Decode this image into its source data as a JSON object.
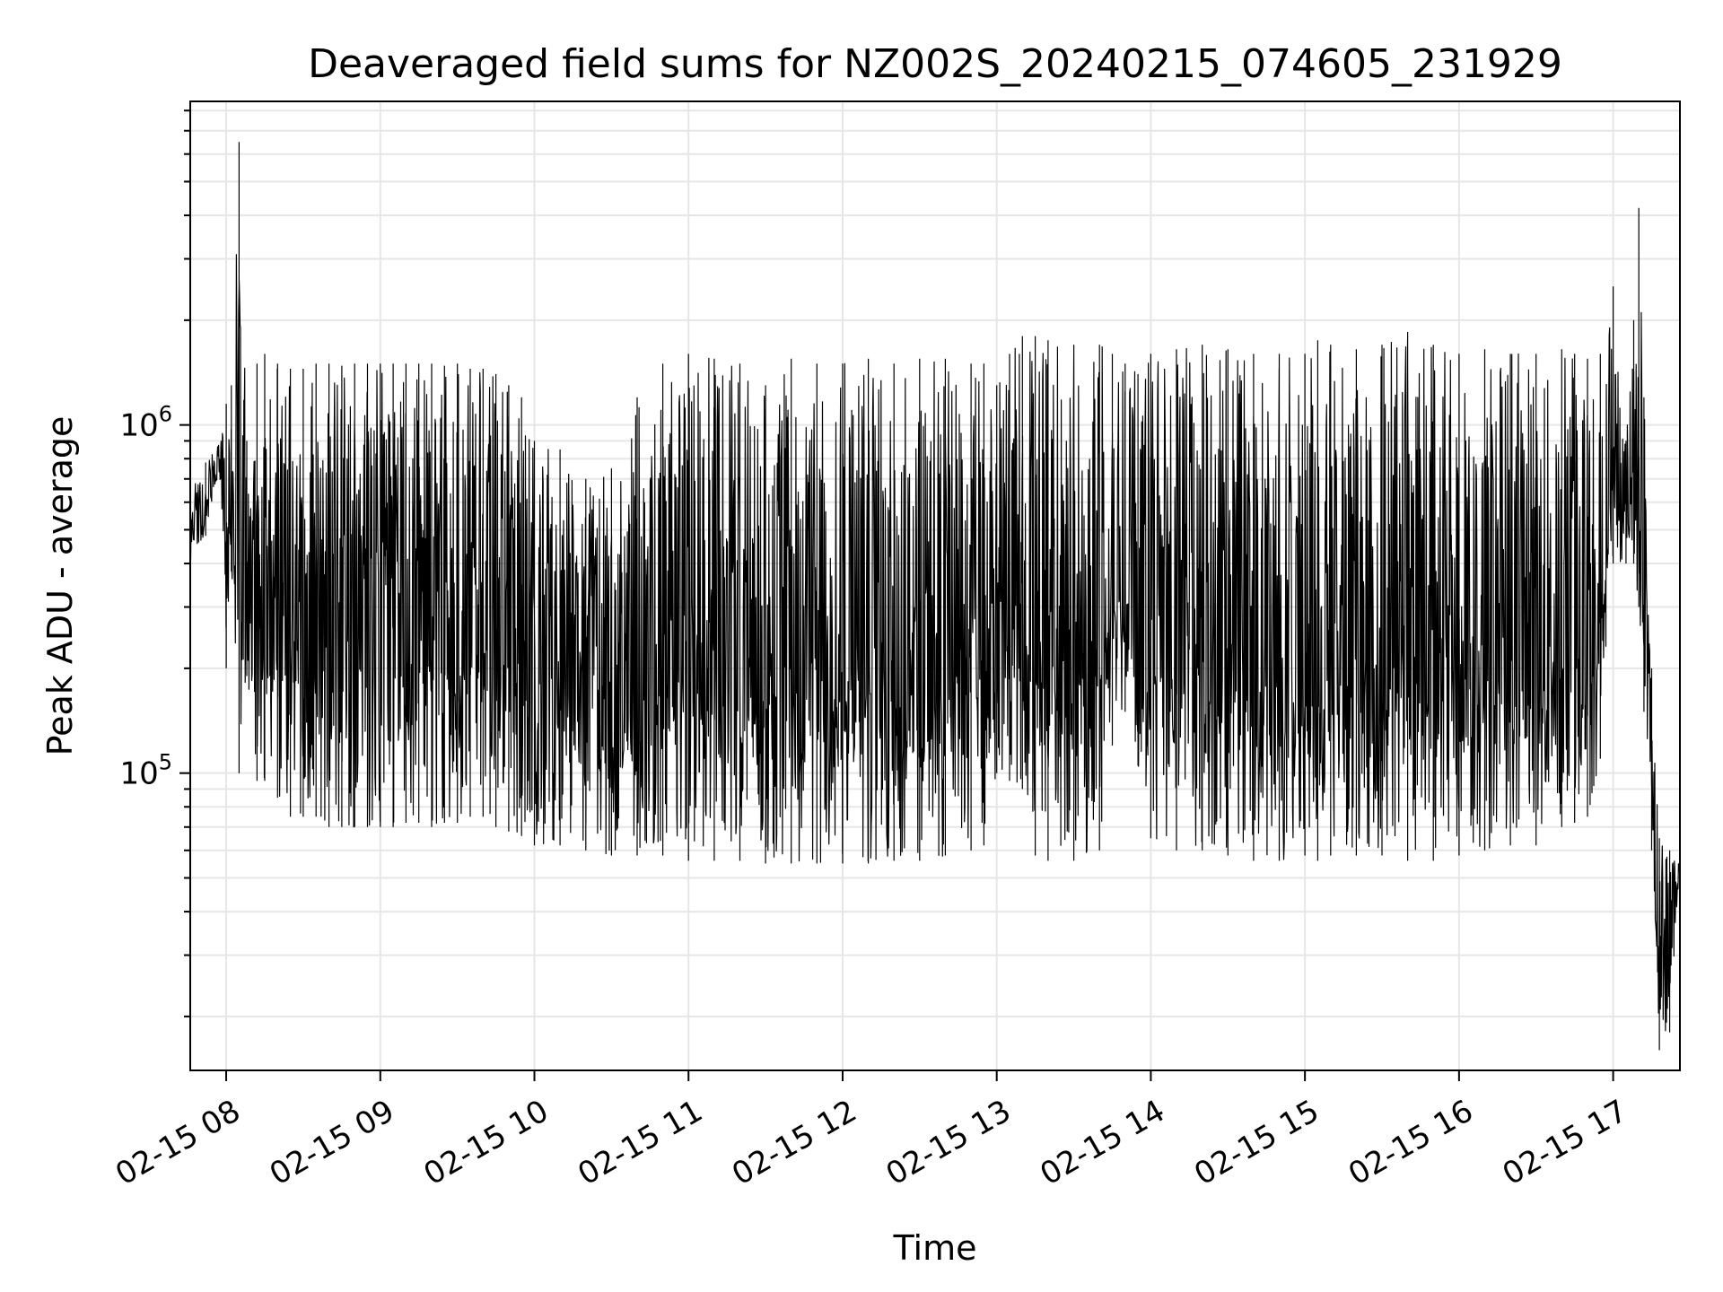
{
  "chart_data": {
    "type": "line",
    "title": "Deaveraged field sums for NZ002S_20240215_074605_231929",
    "xlabel": "Time",
    "ylabel": "Peak ADU - average",
    "y_scale": "log",
    "ylim": [
      14000,
      8500000
    ],
    "xlim": [
      "2024-02-15 07:46",
      "2024-02-15 17:26"
    ],
    "grid": true,
    "line_color": "#000000",
    "grid_color": "#e6e6e6",
    "x_ticks": [
      {
        "at": "2024-02-15 08:00",
        "label": "02-15 08"
      },
      {
        "at": "2024-02-15 09:00",
        "label": "02-15 09"
      },
      {
        "at": "2024-02-15 10:00",
        "label": "02-15 10"
      },
      {
        "at": "2024-02-15 11:00",
        "label": "02-15 11"
      },
      {
        "at": "2024-02-15 12:00",
        "label": "02-15 12"
      },
      {
        "at": "2024-02-15 13:00",
        "label": "02-15 13"
      },
      {
        "at": "2024-02-15 14:00",
        "label": "02-15 14"
      },
      {
        "at": "2024-02-15 15:00",
        "label": "02-15 15"
      },
      {
        "at": "2024-02-15 16:00",
        "label": "02-15 16"
      },
      {
        "at": "2024-02-15 17:00",
        "label": "02-15 17"
      }
    ],
    "y_ticks": [
      {
        "value": 100000,
        "base": "10",
        "exp": "5"
      },
      {
        "value": 1000000,
        "base": "10",
        "exp": "6"
      }
    ],
    "series": [
      {
        "x": [
          "2024-02-15 07:46",
          "2024-02-15 07:52",
          "2024-02-15 07:58",
          "2024-02-15 08:00",
          "2024-02-15 08:02",
          "2024-02-15 08:05",
          "2024-02-15 08:08",
          "2024-02-15 08:12",
          "2024-02-15 08:15",
          "2024-02-15 08:20",
          "2024-02-15 08:25",
          "2024-02-15 08:30",
          "2024-02-15 08:35",
          "2024-02-15 08:40",
          "2024-02-15 08:45",
          "2024-02-15 08:50",
          "2024-02-15 08:55",
          "2024-02-15 09:00",
          "2024-02-15 09:05",
          "2024-02-15 09:10",
          "2024-02-15 09:15",
          "2024-02-15 09:20",
          "2024-02-15 09:25",
          "2024-02-15 09:30",
          "2024-02-15 09:35",
          "2024-02-15 09:40",
          "2024-02-15 09:45",
          "2024-02-15 09:50",
          "2024-02-15 09:55",
          "2024-02-15 10:00",
          "2024-02-15 10:10",
          "2024-02-15 10:20",
          "2024-02-15 10:30",
          "2024-02-15 10:40",
          "2024-02-15 10:50",
          "2024-02-15 11:00",
          "2024-02-15 11:10",
          "2024-02-15 11:20",
          "2024-02-15 11:30",
          "2024-02-15 11:40",
          "2024-02-15 11:50",
          "2024-02-15 12:00",
          "2024-02-15 12:10",
          "2024-02-15 12:20",
          "2024-02-15 12:30",
          "2024-02-15 12:40",
          "2024-02-15 12:50",
          "2024-02-15 12:55",
          "2024-02-15 13:00",
          "2024-02-15 13:05",
          "2024-02-15 13:10",
          "2024-02-15 13:15",
          "2024-02-15 13:20",
          "2024-02-15 13:30",
          "2024-02-15 13:40",
          "2024-02-15 13:45",
          "2024-02-15 13:50",
          "2024-02-15 13:55",
          "2024-02-15 14:00",
          "2024-02-15 14:10",
          "2024-02-15 14:20",
          "2024-02-15 14:30",
          "2024-02-15 14:40",
          "2024-02-15 14:50",
          "2024-02-15 15:00",
          "2024-02-15 15:05",
          "2024-02-15 15:10",
          "2024-02-15 15:20",
          "2024-02-15 15:30",
          "2024-02-15 15:40",
          "2024-02-15 15:50",
          "2024-02-15 16:00",
          "2024-02-15 16:10",
          "2024-02-15 16:20",
          "2024-02-15 16:30",
          "2024-02-15 16:40",
          "2024-02-15 16:45",
          "2024-02-15 16:50",
          "2024-02-15 16:55",
          "2024-02-15 17:00",
          "2024-02-15 17:05",
          "2024-02-15 17:08",
          "2024-02-15 17:10",
          "2024-02-15 17:12",
          "2024-02-15 17:15",
          "2024-02-15 17:18",
          "2024-02-15 17:22",
          "2024-02-15 17:26"
        ],
        "min": [
          390000,
          480000,
          700000,
          200000,
          380000,
          100000,
          190000,
          95000,
          95000,
          85000,
          75000,
          75000,
          75000,
          70000,
          70000,
          70000,
          70000,
          70000,
          70000,
          72000,
          72000,
          70000,
          72000,
          72000,
          75000,
          75000,
          70000,
          68000,
          66000,
          62000,
          62000,
          60000,
          58000,
          58000,
          58000,
          56000,
          56000,
          56000,
          55000,
          55000,
          55000,
          55000,
          55000,
          56000,
          56000,
          58000,
          60000,
          62000,
          100000,
          95000,
          90000,
          58000,
          56000,
          56000,
          60000,
          120000,
          150000,
          105000,
          65000,
          60000,
          60000,
          58000,
          56000,
          56000,
          58000,
          56000,
          58000,
          58000,
          58000,
          56000,
          56000,
          58000,
          60000,
          62000,
          62000,
          70000,
          72000,
          75000,
          110000,
          400000,
          400000,
          400000,
          300000,
          150000,
          60000,
          16000,
          18000,
          55000
        ],
        "max": [
          700000,
          780000,
          900000,
          1150000,
          1300000,
          6500000,
          900000,
          1500000,
          1600000,
          1500000,
          1450000,
          1450000,
          1500000,
          1500000,
          1480000,
          1500000,
          1500000,
          1500000,
          1500000,
          1500000,
          1500000,
          1500000,
          1480000,
          1500000,
          1450000,
          1450000,
          1400000,
          1300000,
          1200000,
          900000,
          850000,
          700000,
          750000,
          1200000,
          1500000,
          1600000,
          1550000,
          1500000,
          1300000,
          1550000,
          1500000,
          1500000,
          1550000,
          1500000,
          1550000,
          1550000,
          1500000,
          1500000,
          1300000,
          1600000,
          1800000,
          1800000,
          1750000,
          1700000,
          1700000,
          1600000,
          1500000,
          1400000,
          1600000,
          1650000,
          1700000,
          1650000,
          1600000,
          1600000,
          1600000,
          1750000,
          1700000,
          1650000,
          1700000,
          1850000,
          1700000,
          1600000,
          1650000,
          1600000,
          1600000,
          1650000,
          1600000,
          1550000,
          1600000,
          2500000,
          900000,
          2000000,
          4200000,
          1200000,
          200000,
          65000,
          60000,
          58000
        ]
      }
    ]
  }
}
